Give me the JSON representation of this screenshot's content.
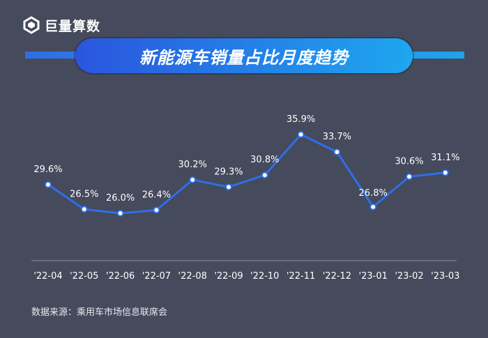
{
  "brand": {
    "name": "巨量算数",
    "icon": "logo-icon"
  },
  "chart_data": {
    "type": "line",
    "title": "新能源车销量占比月度趋势",
    "categories": [
      "'22-04",
      "'22-05",
      "'22-06",
      "'22-07",
      "'22-08",
      "'22-09",
      "'22-10",
      "'22-11",
      "'22-12",
      "'23-01",
      "'23-02",
      "'23-03"
    ],
    "series": [
      {
        "values": [
          29.6,
          26.5,
          26.0,
          26.4,
          30.2,
          29.3,
          30.8,
          35.9,
          33.7,
          26.8,
          30.6,
          31.1
        ],
        "labels": [
          "29.6%",
          "26.5%",
          "26.0%",
          "26.4%",
          "30.2%",
          "29.3%",
          "30.8%",
          "35.9%",
          "33.7%",
          "26.8%",
          "30.6%",
          "31.1%"
        ]
      }
    ],
    "ylim": [
      15,
      38
    ],
    "grid": false,
    "line_color": "#2e6fe8"
  },
  "footer": {
    "source": "数据来源：乘用车市场信息联席会"
  }
}
